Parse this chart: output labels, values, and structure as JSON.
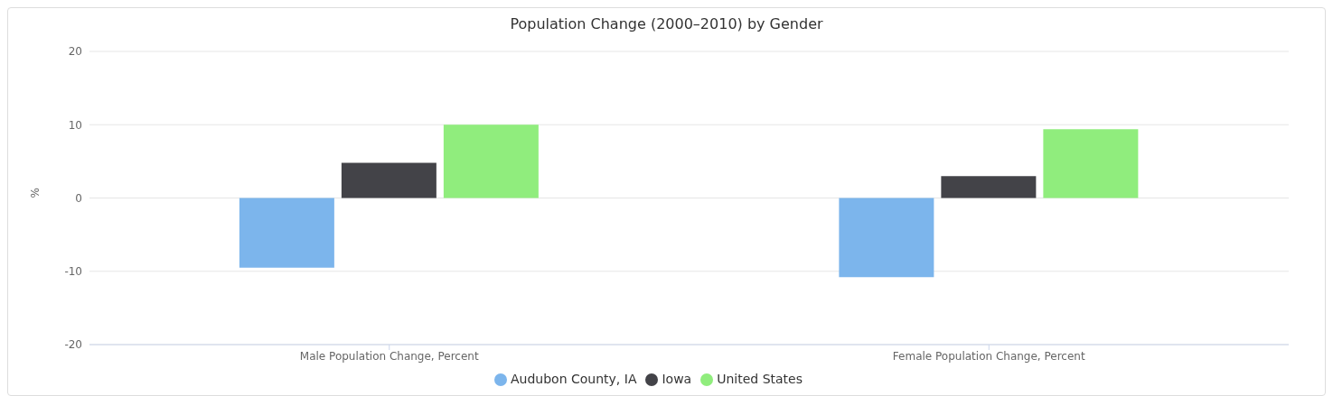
{
  "chart_data": {
    "type": "bar",
    "title": "Population Change (2000–2010) by Gender",
    "ylabel": "%",
    "categories": [
      "Male Population Change, Percent",
      "Female Population Change, Percent"
    ],
    "series": [
      {
        "name": "Audubon County, IA",
        "color": "#7cb5ec",
        "values": [
          -9.5,
          -10.8
        ]
      },
      {
        "name": "Iowa",
        "color": "#434348",
        "values": [
          4.8,
          3.0
        ]
      },
      {
        "name": "United States",
        "color": "#90ed7d",
        "values": [
          10.0,
          9.4
        ]
      }
    ],
    "ylim": [
      -20,
      20
    ],
    "yticks": [
      -20,
      -10,
      0,
      10,
      20
    ],
    "grid": "y",
    "legend": "bottom"
  }
}
